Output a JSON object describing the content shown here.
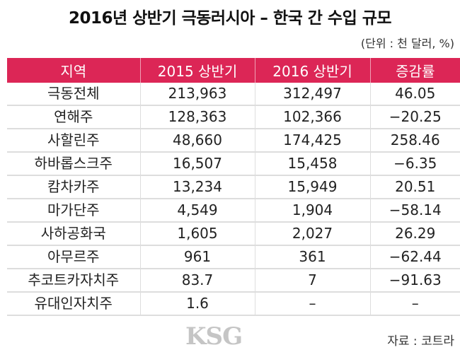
{
  "title": "2016년 상반기 극동러시아 – 한국 간 수입 규모",
  "unit": "(단위 : 천 달러, %)",
  "table": {
    "headers": [
      "지역",
      "2015 상반기",
      "2016 상반기",
      "증감률"
    ],
    "rows": [
      [
        "극동전체",
        "213,963",
        "312,497",
        "46.05"
      ],
      [
        "연해주",
        "128,363",
        "102,366",
        "−20.25"
      ],
      [
        "사할린주",
        "48,660",
        "174,425",
        "258.46"
      ],
      [
        "하바롭스크주",
        "16,507",
        "15,458",
        "−6.35"
      ],
      [
        "캄차카주",
        "13,234",
        "15,949",
        "20.51"
      ],
      [
        "마가단주",
        "4,549",
        "1,904",
        "−58.14"
      ],
      [
        "사하공화국",
        "1,605",
        "2,027",
        "26.29"
      ],
      [
        "아무르주",
        "961",
        "361",
        "−62.44"
      ],
      [
        "추코트카자치주",
        "83.7",
        "7",
        "−91.63"
      ],
      [
        "유대인자치주",
        "1.6",
        "–",
        "–"
      ]
    ]
  },
  "source": "자료 : 코트라",
  "watermark": "KSG",
  "colors": {
    "header_bg": "#dc2656"
  }
}
